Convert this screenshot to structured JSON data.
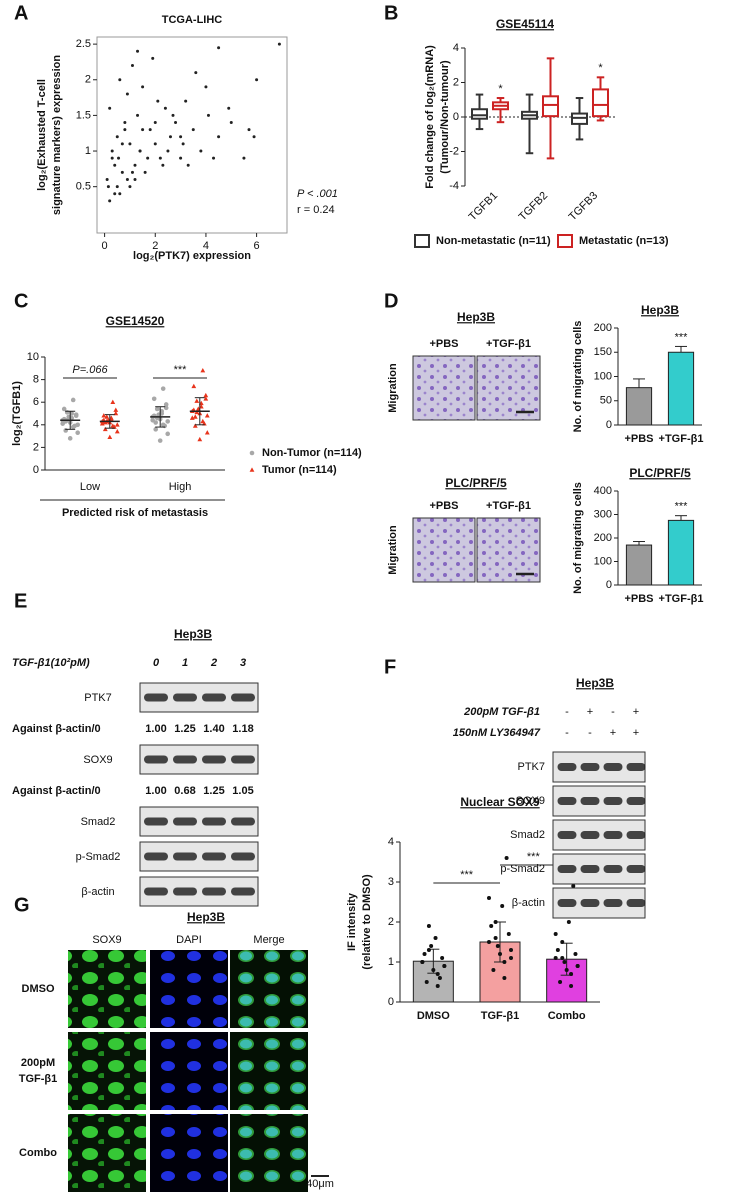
{
  "panel_labels": [
    "A",
    "B",
    "C",
    "D",
    "E",
    "F",
    "G"
  ],
  "chart_data": [
    {
      "type": "scatter",
      "title": "TCGA-LIHC",
      "x_label": "log₂(PTK7) expression",
      "y_label": [
        "log₂(Exhausted T-cell",
        "signature markers) expression"
      ],
      "annotations": [
        "P < .001",
        "r = 0.24"
      ],
      "color": "#222222",
      "xlim": [
        -0.3,
        7.2
      ],
      "ylim": [
        -0.15,
        2.6
      ],
      "xticks": [
        0,
        2,
        4,
        6
      ],
      "yticks": [
        0.5,
        1.0,
        1.5,
        2.0,
        2.5
      ],
      "x": [
        0.1,
        0.2,
        0.3,
        0.4,
        0.5,
        0.5,
        0.6,
        0.7,
        0.8,
        0.9,
        1.0,
        1.1,
        1.2,
        1.3,
        1.4,
        1.5,
        1.6,
        1.8,
        2.0,
        2.2,
        2.4,
        2.6,
        2.8,
        3.0,
        3.2,
        3.5,
        3.8,
        4.1,
        4.5,
        5.0,
        5.5,
        6.0,
        0.3,
        0.6,
        0.9,
        1.2,
        1.5,
        1.9,
        2.3,
        2.7,
        3.1,
        3.6,
        4.3,
        4.9,
        5.7,
        0.2,
        0.7,
        1.0,
        1.3,
        1.7,
        2.1,
        2.5,
        3.3,
        4.0,
        0.4,
        0.8,
        1.1,
        1.4,
        2.0,
        3.0,
        0.15,
        0.55,
        6.9,
        4.5,
        5.9
      ],
      "y": [
        0.6,
        1.6,
        0.9,
        0.4,
        1.2,
        0.5,
        2.0,
        0.7,
        1.4,
        0.6,
        1.1,
        2.2,
        0.8,
        1.5,
        1.0,
        1.9,
        0.7,
        1.3,
        1.1,
        0.9,
        1.6,
        1.2,
        1.4,
        0.9,
        1.7,
        1.3,
        1.0,
        1.5,
        1.2,
        1.4,
        0.9,
        2.0,
        1.0,
        0.4,
        1.8,
        0.6,
        1.3,
        2.3,
        0.8,
        1.5,
        1.1,
        2.1,
        0.9,
        1.6,
        1.3,
        0.3,
        1.1,
        0.5,
        2.4,
        0.9,
        1.7,
        1.0,
        0.8,
        1.9,
        0.8,
        1.3,
        0.7,
        1.0,
        1.4,
        1.2,
        0.5,
        0.9,
        2.5,
        2.45,
        1.2
      ]
    },
    {
      "type": "box",
      "title": "GSE45114",
      "y_label": [
        "Fold change of log₂(mRNA)",
        "(Tumour/Non-tumour)"
      ],
      "categories": [
        "TGFB1",
        "TGFB2",
        "TGFB3"
      ],
      "significance": [
        "*",
        null,
        "*"
      ],
      "ylim": [
        -4,
        4
      ],
      "yticks": [
        -4,
        -2,
        0,
        2,
        4
      ],
      "zero_line": true,
      "legend": "bottom",
      "series": [
        {
          "name": "Non-metastatic (n=11)",
          "color": "#333333",
          "values": [
            [
              -0.7,
              -0.1,
              0.1,
              0.45,
              1.3
            ],
            [
              -2.1,
              -0.1,
              0.1,
              0.3,
              1.3
            ],
            [
              -1.3,
              -0.4,
              -0.05,
              0.2,
              1.1
            ]
          ]
        },
        {
          "name": "Metastatic (n=13)",
          "color": "#cc2222",
          "values": [
            [
              -0.3,
              0.45,
              0.65,
              0.85,
              1.1
            ],
            [
              -2.4,
              0.05,
              0.7,
              1.2,
              3.4
            ],
            [
              -0.2,
              0.05,
              0.7,
              1.6,
              2.3
            ]
          ]
        }
      ]
    },
    {
      "type": "strip",
      "title": "GSE14520",
      "y_label": "log₂(TGFB1)",
      "x_group_label": "Predicted risk of metastasis",
      "categories": [
        "Low",
        "High"
      ],
      "comparisons": [
        "P=.066",
        "***"
      ],
      "ylim": [
        0,
        10
      ],
      "yticks": [
        0,
        2,
        4,
        6,
        8,
        10
      ],
      "legend": "right",
      "series": [
        {
          "name": "Non-Tumor (n=114)",
          "color": "#a8a8a8",
          "marker": "circle",
          "mean": [
            4.4,
            4.7
          ],
          "sd": [
            0.8,
            0.9
          ],
          "values": [
            [
              4.4,
              3.8,
              5.1,
              4.0,
              4.6,
              3.5,
              4.9,
              4.2,
              5.4,
              3.9,
              4.7,
              4.1,
              6.2,
              4.4,
              3.3,
              5.0,
              4.3,
              4.8,
              2.8,
              4.5
            ],
            [
              4.7,
              4.0,
              5.4,
              4.3,
              5.0,
              3.6,
              5.8,
              4.5,
              6.3,
              3.9,
              4.9,
              4.4,
              7.2,
              4.6,
              3.2,
              5.2,
              4.2,
              5.5,
              2.6,
              4.8
            ]
          ]
        },
        {
          "name": "Tumor (n=114)",
          "color": "#e8341c",
          "marker": "triangle",
          "mean": [
            4.3,
            5.2
          ],
          "sd": [
            0.6,
            1.2
          ],
          "values": [
            [
              4.3,
              3.9,
              4.7,
              4.0,
              4.5,
              3.6,
              5.0,
              4.2,
              4.8,
              3.8,
              4.4,
              4.1,
              6.0,
              4.3,
              3.4,
              4.6,
              4.2,
              5.3,
              2.9,
              4.4
            ],
            [
              5.2,
              4.3,
              6.1,
              4.8,
              5.6,
              3.9,
              6.6,
              5.0,
              7.4,
              4.1,
              5.4,
              4.6,
              8.8,
              5.1,
              3.3,
              5.9,
              4.7,
              6.3,
              2.7,
              5.3
            ]
          ]
        }
      ]
    },
    {
      "type": "bar",
      "title": "Hep3B",
      "y_label": "No. of migrating cells",
      "categories": [
        "+PBS",
        "+TGF-β1"
      ],
      "values": [
        77,
        150
      ],
      "errors": [
        18,
        12
      ],
      "error_direction": "up",
      "colors": [
        "#9a9a9a",
        "#33cccc"
      ],
      "significance": [
        null,
        "***"
      ],
      "ylim": [
        0,
        200
      ],
      "yticks": [
        0,
        50,
        100,
        150,
        200
      ]
    },
    {
      "type": "bar",
      "title": "PLC/PRF/5",
      "y_label": "No. of migrating cells",
      "categories": [
        "+PBS",
        "+TGF-β1"
      ],
      "values": [
        170,
        275
      ],
      "errors": [
        15,
        20
      ],
      "error_direction": "up",
      "colors": [
        "#9a9a9a",
        "#33cccc"
      ],
      "significance": [
        null,
        "***"
      ],
      "ylim": [
        0,
        400
      ],
      "yticks": [
        0,
        100,
        200,
        300,
        400
      ]
    },
    {
      "type": "bar",
      "title": "Nuclear SOX9",
      "y_label": [
        "IF intensity",
        "(relative to DMSO)"
      ],
      "categories": [
        "DMSO",
        "TGF-β1",
        "Combo"
      ],
      "values": [
        1.02,
        1.5,
        1.07
      ],
      "errors": [
        0.3,
        0.5,
        0.4
      ],
      "error_direction": "both",
      "colors": [
        "#b4b4b4",
        "#f4a0a0",
        "#e040e0"
      ],
      "comparisons": [
        "***",
        "***"
      ],
      "ylim": [
        0,
        4
      ],
      "yticks": [
        0,
        1,
        2,
        3,
        4
      ],
      "points": [
        [
          1.0,
          0.7,
          1.3,
          0.9,
          1.6,
          0.5,
          1.1,
          0.8,
          1.2,
          0.6,
          1.4,
          1.0,
          0.4,
          1.9,
          0.9
        ],
        [
          1.5,
          1.0,
          2.0,
          1.3,
          2.4,
          0.8,
          1.7,
          1.2,
          1.9,
          3.6,
          1.4,
          2.6,
          0.6,
          1.6,
          1.1
        ],
        [
          1.1,
          0.7,
          1.5,
          0.9,
          2.0,
          0.5,
          1.2,
          0.8,
          1.3,
          2.9,
          1.0,
          1.7,
          0.4,
          1.1,
          0.9
        ]
      ]
    }
  ],
  "migration_images": [
    {
      "title": "Hep3B",
      "columns": [
        "+PBS",
        "+TGF-β1"
      ],
      "row_label": "Migration"
    },
    {
      "title": "PLC/PRF/5",
      "columns": [
        "+PBS",
        "+TGF-β1"
      ],
      "row_label": "Migration"
    }
  ],
  "blot_E": {
    "title": "Hep3B",
    "treatment": "TGF-β1(10²pM)",
    "lanes": [
      "0",
      "1",
      "2",
      "3"
    ],
    "rows": [
      {
        "label": "PTK7",
        "quant_label": "Against β-actin/0",
        "quant": [
          "1.00",
          "1.25",
          "1.40",
          "1.18"
        ]
      },
      {
        "label": "SOX9",
        "quant_label": "Against β-actin/0",
        "quant": [
          "1.00",
          "0.68",
          "1.25",
          "1.05"
        ]
      },
      {
        "label": "Smad2"
      },
      {
        "label": "p-Smad2"
      },
      {
        "label": "β-actin"
      }
    ]
  },
  "blot_F": {
    "title": "Hep3B",
    "conditions": [
      {
        "label": "200pM TGF-β1",
        "lanes": [
          "-",
          "+",
          "-",
          "+"
        ]
      },
      {
        "label": "150nM LY364947",
        "lanes": [
          "-",
          "-",
          "+",
          "+"
        ]
      }
    ],
    "rows": [
      "PTK7",
      "SOX9",
      "Smad2",
      "p-Smad2",
      "β-actin"
    ]
  },
  "if_images": {
    "title": "Hep3B",
    "columns": [
      "SOX9",
      "DAPI",
      "Merge"
    ],
    "rows": [
      [
        "DMSO"
      ],
      [
        "200pM",
        "TGF-β1"
      ],
      [
        "Combo"
      ]
    ],
    "scale_bar": "40μm"
  }
}
